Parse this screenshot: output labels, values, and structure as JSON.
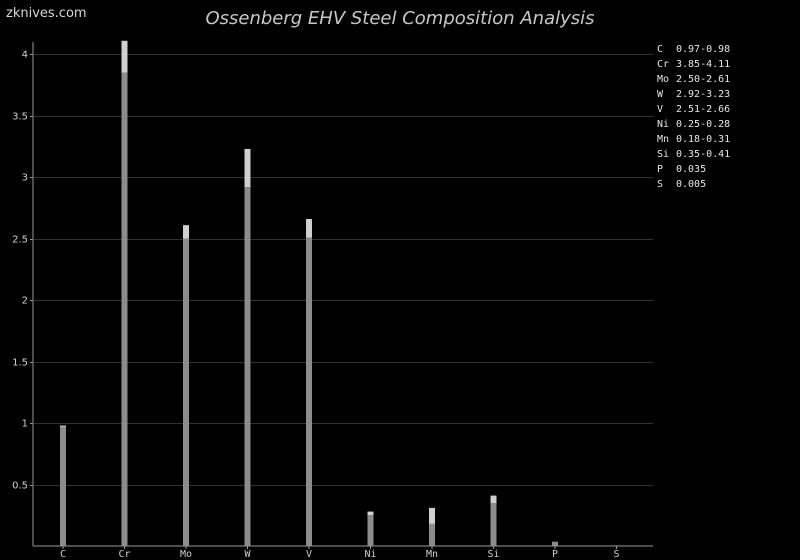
{
  "site": {
    "brand": "zknives.com"
  },
  "colors": {
    "background": "#000000",
    "grid": "#333333",
    "bar_min": "#8c8c8c",
    "bar_range": "#cfcfcf",
    "text": "#d0d0d0"
  },
  "chart_data": {
    "type": "bar",
    "title": "Ossenberg EHV Steel Composition Analysis",
    "xlabel": "",
    "ylabel": "",
    "ylim": [
      0,
      4.1
    ],
    "yticks": [
      0.5,
      1,
      1.5,
      2,
      2.5,
      3,
      3.5,
      4
    ],
    "ytick_labels": [
      "0.5",
      "1",
      "1.5",
      "2",
      "2.5",
      "3",
      "3.5",
      "4"
    ],
    "grid": true,
    "legend_position": "top-right",
    "categories": [
      "C",
      "Cr",
      "Mo",
      "W",
      "V",
      "Ni",
      "Mn",
      "Si",
      "P",
      "S"
    ],
    "min_values": [
      0.97,
      3.85,
      2.5,
      2.92,
      2.51,
      0.25,
      0.18,
      0.35,
      0.035,
      0.005
    ],
    "max_values": [
      0.98,
      4.11,
      2.61,
      3.23,
      2.66,
      0.28,
      0.31,
      0.41,
      0.035,
      0.005
    ],
    "legend": [
      {
        "element": "C",
        "range": "0.97-0.98"
      },
      {
        "element": "Cr",
        "range": "3.85-4.11"
      },
      {
        "element": "Mo",
        "range": "2.50-2.61"
      },
      {
        "element": "W",
        "range": "2.92-3.23"
      },
      {
        "element": "V",
        "range": "2.51-2.66"
      },
      {
        "element": "Ni",
        "range": "0.25-0.28"
      },
      {
        "element": "Mn",
        "range": "0.18-0.31"
      },
      {
        "element": "Si",
        "range": "0.35-0.41"
      },
      {
        "element": "P",
        "range": "0.035"
      },
      {
        "element": "S",
        "range": "0.005"
      }
    ]
  }
}
